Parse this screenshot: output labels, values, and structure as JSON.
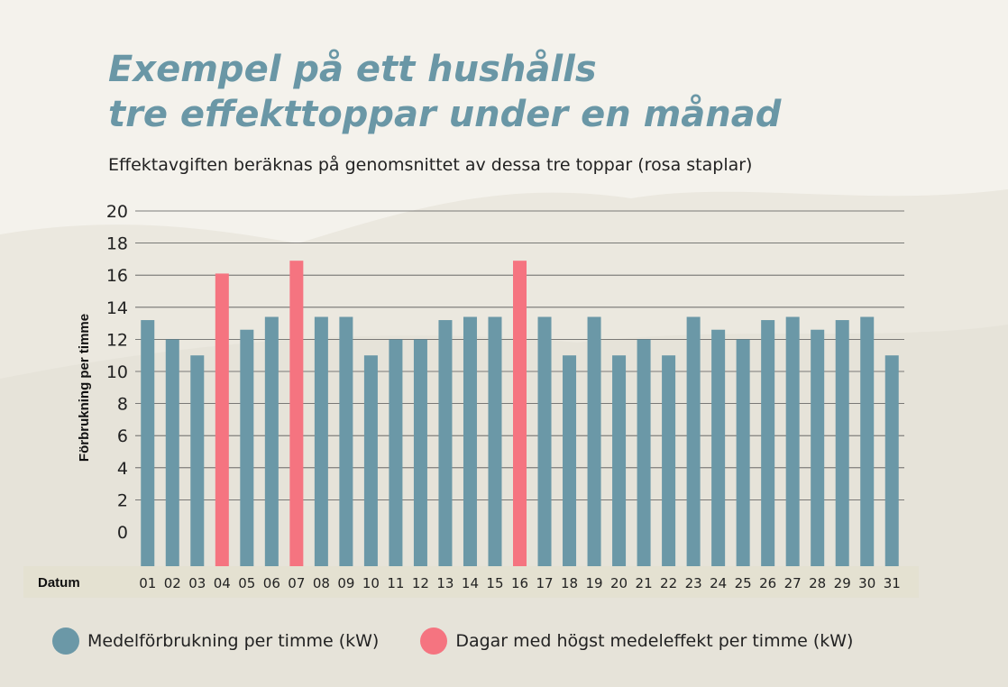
{
  "title_line1": "Exempel på ett hushålls",
  "title_line2": "tre effekttoppar under en månad",
  "subtitle": "Effektavgiften beräknas på genomsnittet av dessa tre toppar (rosa staplar)",
  "colors": {
    "title": "#6a97a6",
    "normal_bar": "#6b98a7",
    "peak_bar": "#f57480",
    "date_band": "#e4e1d1",
    "background": "#f4f2ec"
  },
  "legend": [
    {
      "label": "Medelförbrukning per timme (kW)",
      "color": "#6b98a7"
    },
    {
      "label": "Dagar med högst medeleffekt per timme (kW)",
      "color": "#f57480"
    }
  ],
  "chart_data": {
    "type": "bar",
    "ylabel": "Förbrukning per timme",
    "xlabel": "Datum",
    "ylim": [
      0,
      20
    ],
    "yticks": [
      20,
      18,
      16,
      14,
      12,
      10,
      8,
      6,
      4,
      2,
      0
    ],
    "grid": true,
    "categories": [
      "01",
      "02",
      "03",
      "04",
      "05",
      "06",
      "07",
      "08",
      "09",
      "10",
      "11",
      "12",
      "13",
      "14",
      "15",
      "16",
      "17",
      "18",
      "19",
      "20",
      "21",
      "22",
      "23",
      "24",
      "25",
      "26",
      "27",
      "28",
      "29",
      "30",
      "31"
    ],
    "series": [
      {
        "name": "Medelförbrukning per timme (kW)",
        "values": [
          13.2,
          12,
          11,
          16.1,
          12.6,
          13.4,
          16.9,
          13.4,
          13.4,
          11,
          12,
          12,
          13.2,
          13.4,
          13.4,
          16.9,
          13.4,
          11,
          13.4,
          11,
          12,
          11,
          13.4,
          12.6,
          12,
          13.2,
          13.4,
          12.6,
          13.2,
          13.4,
          11
        ]
      }
    ],
    "peak_categories": [
      "04",
      "07",
      "16"
    ]
  }
}
